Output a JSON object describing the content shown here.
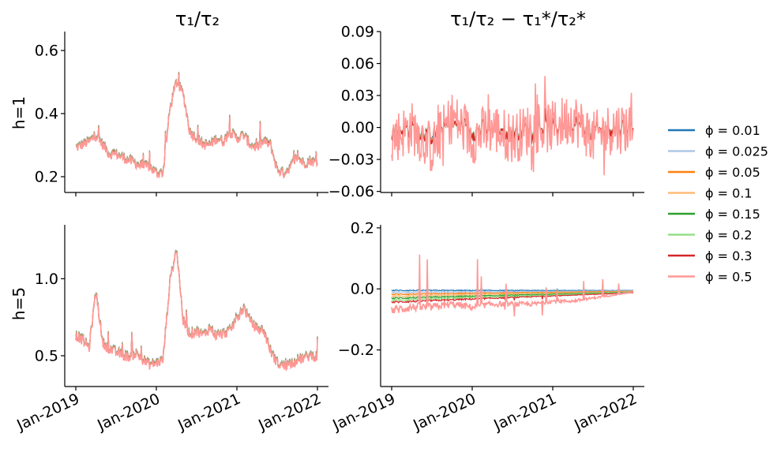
{
  "figure": {
    "panel_titles": [
      "τ₁/τ₂",
      "τ₁/τ₂ − τ₁*/τ₂*"
    ],
    "row_labels": [
      "h=1",
      "h=5"
    ]
  },
  "x_ticks": [
    "Jan-2019",
    "Jan-2020",
    "Jan-2021",
    "Jan-2022"
  ],
  "legend": {
    "placement": "right",
    "items": [
      {
        "label": "ϕ = 0.01",
        "color": "#1f77b4"
      },
      {
        "label": "ϕ = 0.025",
        "color": "#aec7e8"
      },
      {
        "label": "ϕ = 0.05",
        "color": "#ff7f0e"
      },
      {
        "label": "ϕ = 0.1",
        "color": "#ffbb78"
      },
      {
        "label": "ϕ = 0.15",
        "color": "#2ca02c"
      },
      {
        "label": "ϕ = 0.2",
        "color": "#98df8a"
      },
      {
        "label": "ϕ = 0.3",
        "color": "#d62728"
      },
      {
        "label": "ϕ = 0.5",
        "color": "#ff9896"
      }
    ]
  },
  "chart_data": [
    {
      "type": "line",
      "panel": "h=1, τ1/τ2",
      "title": "τ1/τ2",
      "ylabel": "h=1",
      "x_range": [
        "2019-01",
        "2022-01"
      ],
      "ylim": [
        0.15,
        0.66
      ],
      "yticks": [
        0.2,
        0.4,
        0.6
      ],
      "ytick_labels": [
        "0.2",
        "0.4",
        "0.6"
      ],
      "x": [
        "2019-01",
        "2019-02",
        "2019-03",
        "2019-04",
        "2019-05",
        "2019-06",
        "2019-07",
        "2019-08",
        "2019-09",
        "2019-10",
        "2019-11",
        "2019-12",
        "2020-01",
        "2020-02",
        "2020-03",
        "2020-04",
        "2020-05",
        "2020-06",
        "2020-07",
        "2020-08",
        "2020-09",
        "2020-10",
        "2020-11",
        "2020-12",
        "2021-01",
        "2021-02",
        "2021-03",
        "2021-04",
        "2021-05",
        "2021-06",
        "2021-07",
        "2021-08",
        "2021-09",
        "2021-10",
        "2021-11",
        "2021-12",
        "2022-01"
      ],
      "series": [
        {
          "name": "ϕ = 0.5",
          "values": [
            0.29,
            0.3,
            0.31,
            0.33,
            0.3,
            0.27,
            0.27,
            0.26,
            0.25,
            0.24,
            0.23,
            0.23,
            0.21,
            0.21,
            0.41,
            0.5,
            0.46,
            0.34,
            0.32,
            0.3,
            0.3,
            0.32,
            0.31,
            0.34,
            0.32,
            0.33,
            0.3,
            0.29,
            0.31,
            0.3,
            0.22,
            0.21,
            0.23,
            0.26,
            0.24,
            0.25,
            0.24
          ]
        }
      ]
    },
    {
      "type": "line",
      "panel": "h=1, difference",
      "title": "τ1/τ2 − τ1*/τ2*",
      "x_range": [
        "2019-01",
        "2022-01"
      ],
      "ylim": [
        -0.061,
        0.09
      ],
      "yticks": [
        -0.06,
        -0.03,
        0.0,
        0.03,
        0.06,
        0.09
      ],
      "ytick_labels": [
        "−0.06",
        "−0.03",
        "0.00",
        "0.03",
        "0.06",
        "0.09"
      ],
      "x": [
        "2019-01",
        "2019-04",
        "2019-07",
        "2019-10",
        "2020-01",
        "2020-04",
        "2020-07",
        "2020-10",
        "2021-01",
        "2021-04",
        "2021-07",
        "2021-10",
        "2022-01"
      ],
      "series": [
        {
          "name": "ϕ = 0.5",
          "values": [
            -0.01,
            0.0,
            -0.02,
            0.01,
            -0.01,
            0.0,
            -0.01,
            0.0,
            0.0,
            0.01,
            -0.01,
            0.0,
            0.0
          ]
        }
      ]
    },
    {
      "type": "line",
      "panel": "h=5, τ1/τ2",
      "ylabel": "h=5",
      "x_range": [
        "2019-01",
        "2022-01"
      ],
      "ylim": [
        0.3,
        1.35
      ],
      "yticks": [
        0.5,
        1.0
      ],
      "ytick_labels": [
        "0.5",
        "1.0"
      ],
      "x": [
        "2019-01",
        "2019-02",
        "2019-03",
        "2019-04",
        "2019-05",
        "2019-06",
        "2019-07",
        "2019-08",
        "2019-09",
        "2019-10",
        "2019-11",
        "2019-12",
        "2020-01",
        "2020-02",
        "2020-03",
        "2020-04",
        "2020-05",
        "2020-06",
        "2020-07",
        "2020-08",
        "2020-09",
        "2020-10",
        "2020-11",
        "2020-12",
        "2021-01",
        "2021-02",
        "2021-03",
        "2021-04",
        "2021-05",
        "2021-06",
        "2021-07",
        "2021-08",
        "2021-09",
        "2021-10",
        "2021-11",
        "2021-12",
        "2022-01"
      ],
      "series": [
        {
          "name": "ϕ = 0.5",
          "values": [
            0.63,
            0.6,
            0.55,
            0.92,
            0.58,
            0.54,
            0.52,
            0.5,
            0.49,
            0.51,
            0.47,
            0.44,
            0.45,
            0.47,
            0.97,
            1.2,
            0.72,
            0.64,
            0.66,
            0.63,
            0.68,
            0.62,
            0.64,
            0.66,
            0.74,
            0.81,
            0.72,
            0.67,
            0.66,
            0.53,
            0.45,
            0.43,
            0.45,
            0.47,
            0.48,
            0.5,
            0.49
          ]
        }
      ]
    },
    {
      "type": "line",
      "panel": "h=5, difference",
      "x_range": [
        "2019-01",
        "2022-01"
      ],
      "ylim": [
        -0.32,
        0.21
      ],
      "yticks": [
        -0.2,
        0.0,
        0.2
      ],
      "ytick_labels": [
        "−0.2",
        "0.0",
        "0.2"
      ],
      "x": [
        "2019-01",
        "2019-04",
        "2019-07",
        "2019-10",
        "2020-01",
        "2020-04",
        "2020-07",
        "2020-10",
        "2021-01",
        "2021-04",
        "2021-07",
        "2021-10",
        "2022-01"
      ],
      "series": [
        {
          "name": "ϕ = 0.5",
          "values": [
            -0.07,
            -0.06,
            -0.06,
            -0.05,
            -0.06,
            -0.05,
            -0.05,
            -0.05,
            -0.04,
            -0.04,
            -0.03,
            -0.02,
            -0.01
          ]
        }
      ]
    }
  ]
}
